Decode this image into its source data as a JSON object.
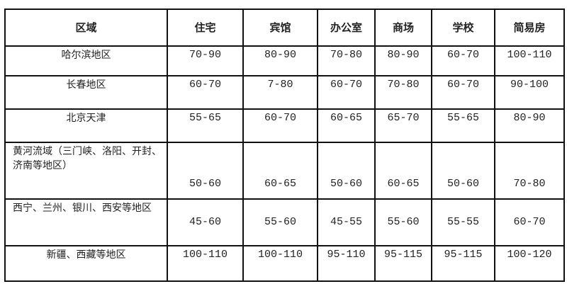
{
  "table": {
    "headers": [
      "区域",
      "住宅",
      "宾馆",
      "办公室",
      "商场",
      "学校",
      "简易房"
    ],
    "rows": [
      {
        "region": "哈尔滨地区",
        "values": [
          "70-90",
          "80-90",
          "70-80",
          "80-90",
          "60-70",
          "100-110"
        ]
      },
      {
        "region": "长春地区",
        "values": [
          "60-70",
          "7-80",
          "60-70",
          "70-80",
          "60-70",
          "90-100"
        ]
      },
      {
        "region": "北京天津",
        "values": [
          "55-65",
          "60-70",
          "60-65",
          "65-70",
          "55-65",
          "80-90"
        ]
      },
      {
        "region": "黄河流域（三门峡、洛阳、开封、济南等地区）",
        "values": [
          "50-60",
          "60-65",
          "50-60",
          "60-65",
          "50-60",
          "70-80"
        ]
      },
      {
        "region": "西宁、兰州、银川、西安等地区",
        "values": [
          "45-60",
          "55-60",
          "45-55",
          "55-60",
          "55-55",
          "60-70"
        ]
      },
      {
        "region": "新疆、西藏等地区",
        "values": [
          "100-110",
          "100-110",
          "95-110",
          "95-115",
          "95-115",
          "100-120"
        ]
      }
    ]
  }
}
